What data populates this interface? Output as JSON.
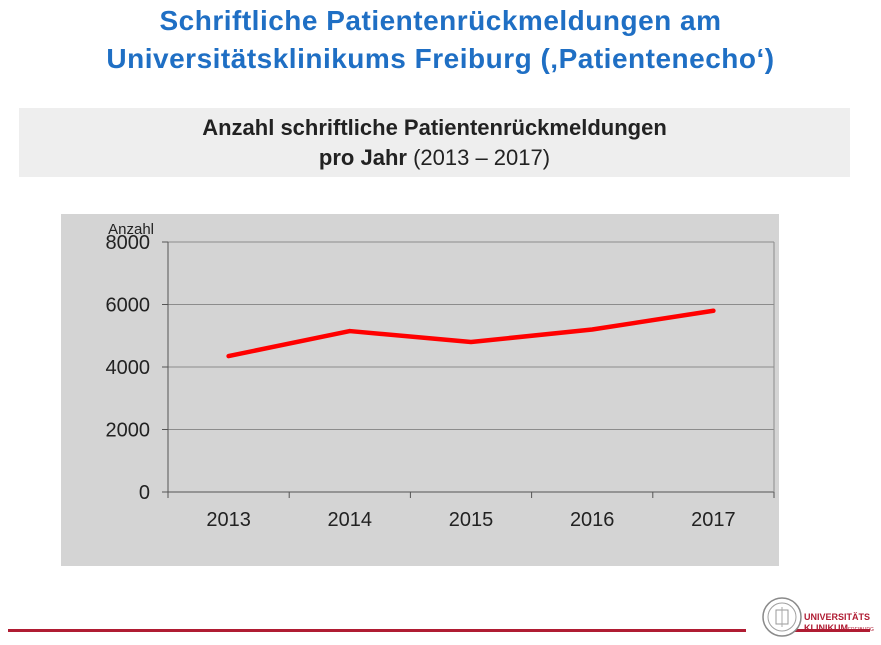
{
  "slide": {
    "title_line1": "Schriftliche Patientenrückmeldungen am",
    "title_line2": "Universitätsklinikums Freiburg (‚Patientenecho‘)",
    "title_color": "#1f6fc4"
  },
  "subtitle": {
    "line1": "Anzahl schriftliche Patientenrückmeldungen",
    "line2_bold": "pro Jahr",
    "line2_rest": " (2013 – 2017)"
  },
  "chart_data": {
    "type": "line",
    "title": "",
    "xlabel": "",
    "ylabel": "Anzahl",
    "categories": [
      "2013",
      "2014",
      "2015",
      "2016",
      "2017"
    ],
    "series": [
      {
        "values": [
          4350,
          5150,
          4800,
          5200,
          5800
        ],
        "color": "#ff0000"
      }
    ],
    "ylim": [
      0,
      8000
    ],
    "yticks": [
      0,
      2000,
      4000,
      6000,
      8000
    ],
    "grid": "horizontal",
    "legend": "none",
    "background": "#d4d4d4"
  },
  "footer": {
    "accent_color": "#b01c33",
    "logo_text_line1": "UNIVERSITÄTS",
    "logo_text_line2": "KLINIKUM",
    "logo_text_small": "FREIBURG"
  }
}
